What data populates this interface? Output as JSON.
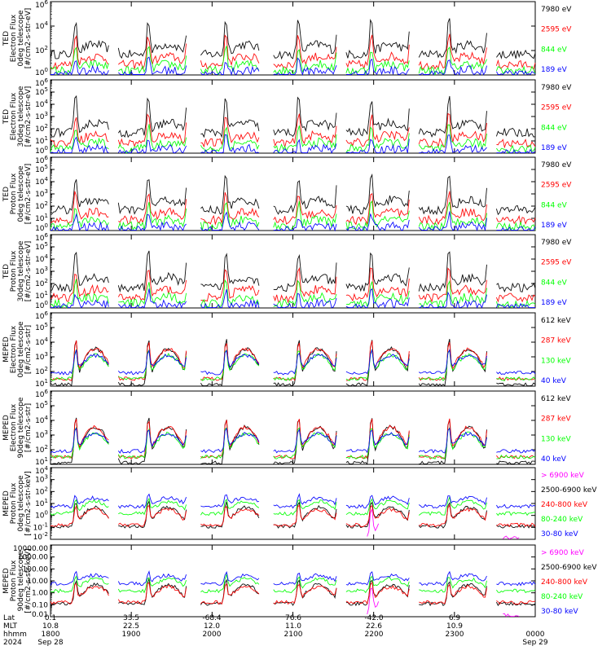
{
  "colors": {
    "blue": "#0000ff",
    "red": "#ff0000",
    "green": "#00ff00",
    "black": "#000000",
    "magenta": "#ff00ff"
  },
  "footer": {
    "row_labels": [
      "Lat",
      "MLT",
      "hhmm",
      "2024"
    ],
    "lat": [
      "0.1",
      "33.5",
      "-68.4",
      "76.6",
      "-42.0",
      "6.9"
    ],
    "mlt": [
      "10.8",
      "22.5",
      "12.0",
      "11.0",
      "22.6",
      "10.9"
    ],
    "hhmm": [
      "1800",
      "1900",
      "2000",
      "2100",
      "2200",
      "2300",
      "0000"
    ],
    "date_start": "Sep 28",
    "date_end": "Sep 29"
  },
  "chart_data": [
    {
      "type": "line",
      "ylabel": [
        "TED",
        "Electron Flux",
        "0deg telescope",
        "[#/cm2-s-str-eV]"
      ],
      "yscale": "log",
      "ylim": [
        1,
        1000000
      ],
      "yticks": [
        "10^6",
        "10^4",
        "10^2",
        "10^0"
      ],
      "x": [
        "1800",
        "1900",
        "2000",
        "2100",
        "2200",
        "2300",
        "0000"
      ],
      "series": [
        {
          "name": "7980 eV",
          "color": "black"
        },
        {
          "name": "2595 eV",
          "color": "red"
        },
        {
          "name": "844 eV",
          "color": "green"
        },
        {
          "name": "189 eV",
          "color": "blue"
        }
      ]
    },
    {
      "type": "line",
      "ylabel": [
        "TED",
        "Electron Flux",
        "30deg telescope",
        "[#/cm2-s-str-eV]"
      ],
      "yscale": "log",
      "ylim": [
        1,
        1000000
      ],
      "yticks": [
        "10^6",
        "10^5",
        "10^4",
        "10^3",
        "10^2",
        "10^1",
        "10^0"
      ],
      "x": [
        "1800",
        "1900",
        "2000",
        "2100",
        "2200",
        "2300",
        "0000"
      ],
      "series": [
        {
          "name": "7980 eV",
          "color": "black"
        },
        {
          "name": "2595 eV",
          "color": "red"
        },
        {
          "name": "844 eV",
          "color": "green"
        },
        {
          "name": "189 eV",
          "color": "blue"
        }
      ]
    },
    {
      "type": "line",
      "ylabel": [
        "TED",
        "Proton Flux",
        "0deg telescope",
        "[#/cm2-s-str-eV]"
      ],
      "yscale": "log",
      "ylim": [
        1,
        1000000
      ],
      "yticks": [
        "10^6",
        "10^5",
        "10^4",
        "10^3",
        "10^2",
        "10^1",
        "10^0"
      ],
      "x": [
        "1800",
        "1900",
        "2000",
        "2100",
        "2200",
        "2300",
        "0000"
      ],
      "series": [
        {
          "name": "7980 eV",
          "color": "black"
        },
        {
          "name": "2595 eV",
          "color": "red"
        },
        {
          "name": "844 eV",
          "color": "green"
        },
        {
          "name": "189 eV",
          "color": "blue"
        }
      ]
    },
    {
      "type": "line",
      "ylabel": [
        "TED",
        "Proton Flux",
        "30deg telescope",
        "[#/cm2-s-str-eV]"
      ],
      "yscale": "log",
      "ylim": [
        1,
        1000000
      ],
      "yticks": [
        "10^6",
        "10^5",
        "10^4",
        "10^3",
        "10^2",
        "10^1",
        "10^0"
      ],
      "x": [
        "1800",
        "1900",
        "2000",
        "2100",
        "2200",
        "2300",
        "0000"
      ],
      "series": [
        {
          "name": "7980 eV",
          "color": "black"
        },
        {
          "name": "2595 eV",
          "color": "red"
        },
        {
          "name": "844 eV",
          "color": "green"
        },
        {
          "name": "189 eV",
          "color": "blue"
        }
      ]
    },
    {
      "type": "line",
      "ylabel": [
        "MEPED",
        "Electron Flux",
        "0deg telescope",
        "[#/cm2-s-str]"
      ],
      "yscale": "log",
      "ylim": [
        10,
        1000000
      ],
      "yticks": [
        "10^6",
        "10^5",
        "10^4",
        "10^3",
        "10^2",
        "10^1"
      ],
      "x": [
        "1800",
        "1900",
        "2000",
        "2100",
        "2200",
        "2300",
        "0000"
      ],
      "series": [
        {
          "name": "612 keV",
          "color": "black"
        },
        {
          "name": "287 keV",
          "color": "red"
        },
        {
          "name": "130 keV",
          "color": "green"
        },
        {
          "name": "40 keV",
          "color": "blue"
        }
      ]
    },
    {
      "type": "line",
      "ylabel": [
        "MEPED",
        "Electron Flux",
        "90deg telescope",
        "[#/cm2-s-str]"
      ],
      "yscale": "log",
      "ylim": [
        10,
        1000000
      ],
      "yticks": [
        "10^6",
        "10^5",
        "10^4",
        "10^3",
        "10^2",
        "10^1"
      ],
      "x": [
        "1800",
        "1900",
        "2000",
        "2100",
        "2200",
        "2300",
        "0000"
      ],
      "series": [
        {
          "name": "612 keV",
          "color": "black"
        },
        {
          "name": "287 keV",
          "color": "red"
        },
        {
          "name": "130 keV",
          "color": "green"
        },
        {
          "name": "40 keV",
          "color": "blue"
        }
      ]
    },
    {
      "type": "line",
      "ylabel": [
        "MEPED",
        "Proton Flux",
        "0deg telescope",
        "[#/cm2-s-str-keV]"
      ],
      "yscale": "log",
      "ylim": [
        0.01,
        10000
      ],
      "yticks": [
        "10^4",
        "10^3",
        "10^2",
        "10^1",
        "10^0",
        "10^-1",
        "10^-2"
      ],
      "x": [
        "1800",
        "1900",
        "2000",
        "2100",
        "2200",
        "2300",
        "0000"
      ],
      "series": [
        {
          "name": "> 6900 keV",
          "color": "magenta"
        },
        {
          "name": "2500-6900 keV",
          "color": "black"
        },
        {
          "name": "240-800 keV",
          "color": "red"
        },
        {
          "name": "80-240 keV",
          "color": "green"
        },
        {
          "name": "30-80 keV",
          "color": "blue"
        }
      ]
    },
    {
      "type": "line",
      "ylabel": [
        "MEPED",
        "Proton Flux",
        "90deg telescope",
        "[#/cm2-s-str-keV]"
      ],
      "yscale": "log",
      "ylim": [
        0.01,
        10000
      ],
      "yticks": [
        "10000.00",
        "1000.00",
        "100.00",
        "10.00",
        "1.00",
        "0.10",
        "0.01"
      ],
      "x": [
        "1800",
        "1900",
        "2000",
        "2100",
        "2200",
        "2300",
        "0000"
      ],
      "series": [
        {
          "name": "> 6900 keV",
          "color": "magenta"
        },
        {
          "name": "2500-6900 keV",
          "color": "black"
        },
        {
          "name": "240-800 keV",
          "color": "red"
        },
        {
          "name": "80-240 keV",
          "color": "green"
        },
        {
          "name": "30-80 keV",
          "color": "blue"
        }
      ]
    }
  ]
}
